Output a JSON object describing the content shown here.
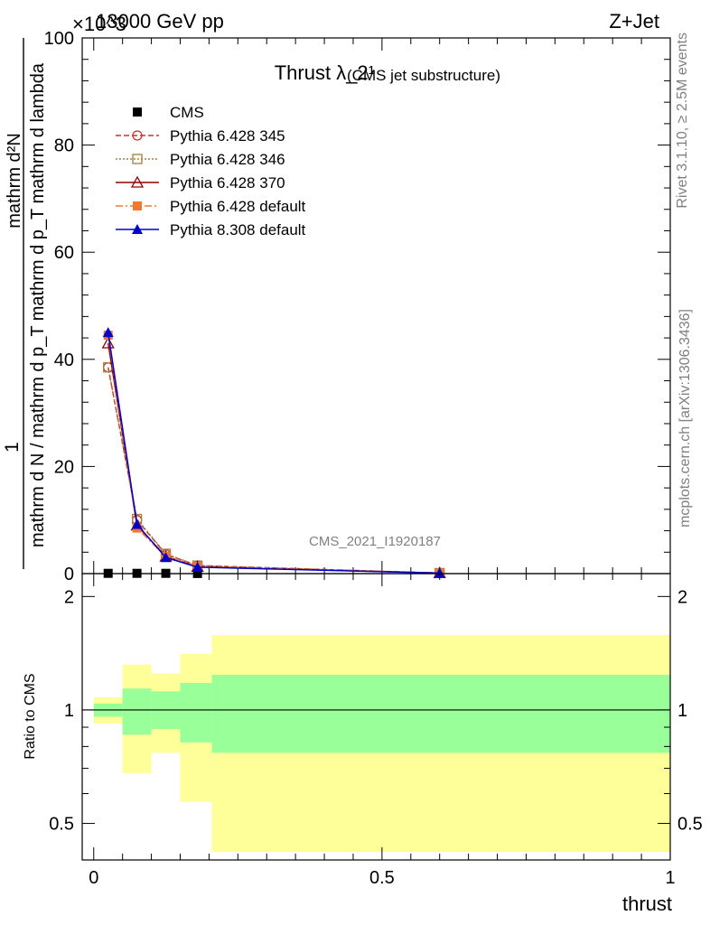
{
  "header": {
    "energy_label": "13000 GeV pp",
    "process_label": "Z+Jet",
    "exponent_label": "×10^3"
  },
  "side_texts": {
    "rivet": "Rivet 3.1.10, ≥ 2.5M events",
    "mcplots": "mcplots.cern.ch [arXiv:1306.3436]"
  },
  "chart_data": [
    {
      "type": "line",
      "title": "Thrust λ_2¹",
      "subtitle": "(CMS jet substructure)",
      "watermark": "CMS_2021_I1920187",
      "ylabel_top": "1",
      "ylabel_bottom": "mathrm d N / mathrm d p_T mathrm d p_T mathrm d lambda",
      "ylabel_numerator": "mathrm d²N",
      "ylim": [
        0,
        100
      ],
      "ylim_units": "×10^3",
      "xlim": [
        -0.02,
        1.0
      ],
      "yticks": [
        0,
        20,
        40,
        60,
        80,
        100
      ],
      "legend_position": "top-left",
      "series": [
        {
          "name": "CMS",
          "color": "#000000",
          "marker": "filled-square",
          "x": [
            0.025,
            0.075,
            0.125,
            0.18
          ],
          "y": [
            0.05,
            0.05,
            0.05,
            0.02
          ]
        },
        {
          "name": "Pythia 6.428 345",
          "color": "#c83232",
          "marker": "open-circle",
          "dash": "dashed",
          "x": [
            0.025,
            0.075,
            0.125,
            0.18,
            0.6
          ],
          "y": [
            38.5,
            10.0,
            3.6,
            1.5,
            0.1
          ]
        },
        {
          "name": "Pythia 6.428 346",
          "color": "#a08040",
          "marker": "open-square",
          "dash": "dotted",
          "x": [
            0.025,
            0.075,
            0.125,
            0.18,
            0.6
          ],
          "y": [
            38.5,
            10.2,
            3.7,
            1.5,
            0.1
          ]
        },
        {
          "name": "Pythia 6.428 370",
          "color": "#8b0000",
          "marker": "open-triangle",
          "dash": "solid",
          "x": [
            0.025,
            0.075,
            0.125,
            0.18,
            0.6
          ],
          "y": [
            43.0,
            9.0,
            3.2,
            1.3,
            0.1
          ]
        },
        {
          "name": "Pythia 6.428 default",
          "color": "#f07830",
          "marker": "filled-square",
          "dash": "dashdot",
          "x": [
            0.025,
            0.075,
            0.125,
            0.18,
            0.6
          ],
          "y": [
            44.5,
            8.5,
            3.2,
            1.3,
            0.1
          ]
        },
        {
          "name": "Pythia 8.308 default",
          "color": "#0000cc",
          "marker": "filled-triangle",
          "dash": "solid",
          "x": [
            0.025,
            0.075,
            0.125,
            0.18,
            0.6
          ],
          "y": [
            45.0,
            9.2,
            3.0,
            1.2,
            0.1
          ]
        }
      ]
    },
    {
      "type": "area",
      "ylabel": "Ratio to CMS",
      "xlabel": "thrust",
      "ylim": [
        0.4,
        2.3
      ],
      "xlim": [
        -0.02,
        1.0
      ],
      "yticks": [
        0.5,
        1,
        2
      ],
      "ytick_labels": [
        "0.5",
        "1",
        "2"
      ],
      "xticks": [
        0,
        0.5,
        1
      ],
      "xtick_labels": [
        "0",
        "0.5",
        "1"
      ],
      "reference_line": 1.0,
      "bins": [
        {
          "x_low": 0.0,
          "x_high": 0.05,
          "total_low": 0.92,
          "total_high": 1.08,
          "stat_low": 0.96,
          "stat_high": 1.04
        },
        {
          "x_low": 0.05,
          "x_high": 0.1,
          "total_low": 0.68,
          "total_high": 1.32,
          "stat_low": 0.86,
          "stat_high": 1.14
        },
        {
          "x_low": 0.1,
          "x_high": 0.15,
          "total_low": 0.77,
          "total_high": 1.25,
          "stat_low": 0.89,
          "stat_high": 1.12
        },
        {
          "x_low": 0.15,
          "x_high": 0.205,
          "total_low": 0.57,
          "total_high": 1.41,
          "stat_low": 0.82,
          "stat_high": 1.18
        },
        {
          "x_low": 0.205,
          "x_high": 1.0,
          "total_low": 0.42,
          "total_high": 1.58,
          "stat_low": 0.77,
          "stat_high": 1.24
        }
      ],
      "band_colors": {
        "total": "#ffff99",
        "stat": "#99ff99"
      }
    }
  ]
}
